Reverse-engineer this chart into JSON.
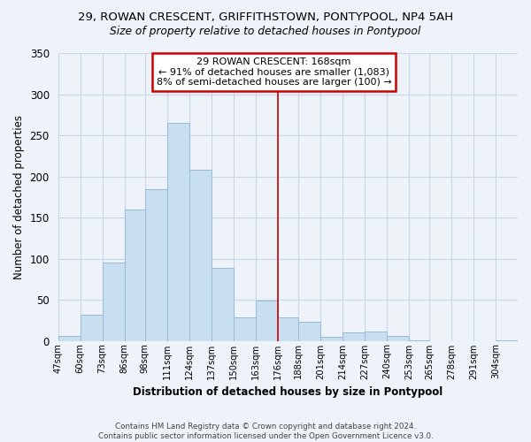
{
  "title": "29, ROWAN CRESCENT, GRIFFITHSTOWN, PONTYPOOL, NP4 5AH",
  "subtitle": "Size of property relative to detached houses in Pontypool",
  "xlabel": "Distribution of detached houses by size in Pontypool",
  "ylabel": "Number of detached properties",
  "bar_labels": [
    "47sqm",
    "60sqm",
    "73sqm",
    "86sqm",
    "98sqm",
    "111sqm",
    "124sqm",
    "137sqm",
    "150sqm",
    "163sqm",
    "176sqm",
    "188sqm",
    "201sqm",
    "214sqm",
    "227sqm",
    "240sqm",
    "253sqm",
    "265sqm",
    "278sqm",
    "291sqm",
    "304sqm"
  ],
  "bar_heights": [
    6,
    32,
    95,
    160,
    184,
    265,
    208,
    89,
    29,
    49,
    29,
    23,
    5,
    10,
    11,
    6,
    1,
    0,
    0,
    0,
    1
  ],
  "bar_color": "#c8dff0",
  "bar_edge_color": "#9ab8d8",
  "vline_x": 176,
  "annotation_title": "29 ROWAN CRESCENT: 168sqm",
  "annotation_line1": "← 91% of detached houses are smaller (1,083)",
  "annotation_line2": "8% of semi-detached houses are larger (100) →",
  "vline_color": "#cc0000",
  "annotation_box_edge": "#cc0000",
  "ylim": [
    0,
    350
  ],
  "bin_edges": [
    47,
    60,
    73,
    86,
    98,
    111,
    124,
    137,
    150,
    163,
    176,
    188,
    201,
    214,
    227,
    240,
    253,
    265,
    278,
    291,
    304,
    317
  ],
  "footer1": "Contains HM Land Registry data © Crown copyright and database right 2024.",
  "footer2": "Contains public sector information licensed under the Open Government Licence v3.0.",
  "background_color": "#eef3fa",
  "plot_bg_color": "#eef3fa",
  "grid_color": "#c8d4e8"
}
